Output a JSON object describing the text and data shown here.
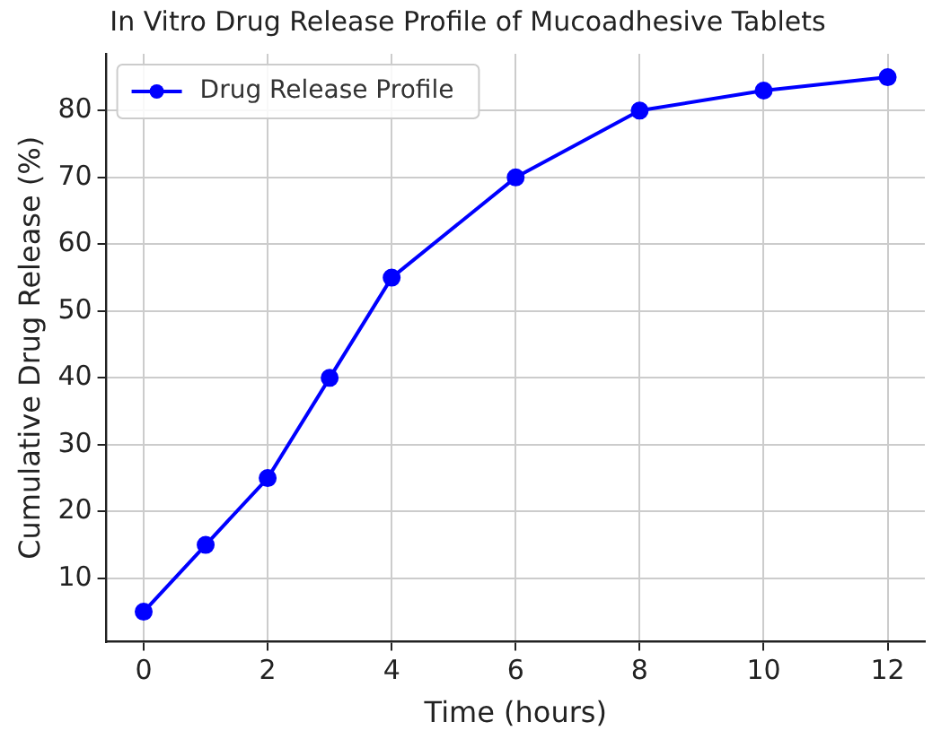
{
  "chart_data": {
    "type": "line",
    "title": "In Vitro Drug Release Profile of Mucoadhesive Tablets",
    "xlabel": "Time (hours)",
    "ylabel": "Cumulative Drug Release (%)",
    "x": [
      0,
      1,
      2,
      3,
      4,
      6,
      8,
      10,
      12
    ],
    "series": [
      {
        "name": "Drug Release Profile",
        "color": "#0000ff",
        "values": [
          5,
          15,
          25,
          40,
          55,
          70,
          80,
          83,
          85
        ]
      }
    ],
    "xlim": [
      -0.6,
      12.6
    ],
    "xticks": [
      0,
      2,
      4,
      6,
      8,
      10,
      12
    ],
    "ylim": [
      0.5,
      88.5
    ],
    "yticks": [
      10,
      20,
      30,
      40,
      50,
      60,
      70,
      80
    ],
    "grid": true,
    "legend": "top left",
    "marker": "circle",
    "line_style": "solid"
  }
}
